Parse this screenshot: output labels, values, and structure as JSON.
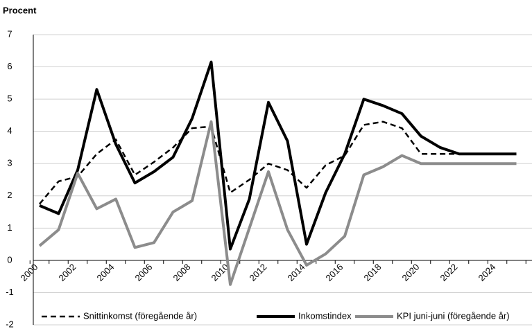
{
  "chart_data": {
    "type": "line",
    "y_label": "Procent",
    "categories": [
      "2000",
      null,
      "2002",
      null,
      "2004",
      null,
      "2006",
      null,
      "2008",
      null,
      "2010",
      null,
      "2012",
      null,
      "2014",
      null,
      "2016",
      null,
      "2018",
      null,
      "2020",
      null,
      "2022",
      null,
      "2024",
      null
    ],
    "series": [
      {
        "name": "Snittinkomst (föregående år)",
        "color": "#000000",
        "dashed": true,
        "values": [
          1.75,
          2.45,
          2.6,
          3.3,
          3.75,
          2.65,
          3.05,
          3.5,
          4.1,
          4.15,
          2.1,
          2.5,
          3.0,
          2.8,
          2.25,
          2.95,
          3.25,
          4.2,
          4.3,
          4.1,
          3.3,
          3.3,
          3.3,
          3.3,
          3.3,
          3.3
        ]
      },
      {
        "name": "Inkomstindex",
        "color": "#000000",
        "dashed": false,
        "values": [
          1.7,
          1.45,
          2.8,
          5.3,
          3.6,
          2.4,
          2.75,
          3.2,
          4.4,
          6.15,
          0.35,
          1.9,
          4.9,
          3.7,
          0.5,
          2.1,
          3.3,
          5.0,
          4.8,
          4.55,
          3.85,
          3.5,
          3.3,
          3.3,
          3.3,
          3.3
        ]
      },
      {
        "name": "KPI juni-juni (föregående år)",
        "color": "#8c8c8c",
        "dashed": false,
        "values": [
          0.45,
          0.95,
          2.7,
          1.6,
          1.9,
          0.4,
          0.55,
          1.5,
          1.85,
          4.3,
          -0.75,
          1.0,
          2.75,
          0.95,
          -0.15,
          0.2,
          0.75,
          2.65,
          2.9,
          3.25,
          3.0,
          3.0,
          3.0,
          3.0,
          3.0,
          3.0
        ]
      }
    ],
    "ylim": [
      -2,
      7
    ],
    "yticks": [
      -2,
      -1,
      0,
      1,
      2,
      3,
      4,
      5,
      6,
      7
    ],
    "grid": true,
    "legend": "bottom"
  }
}
